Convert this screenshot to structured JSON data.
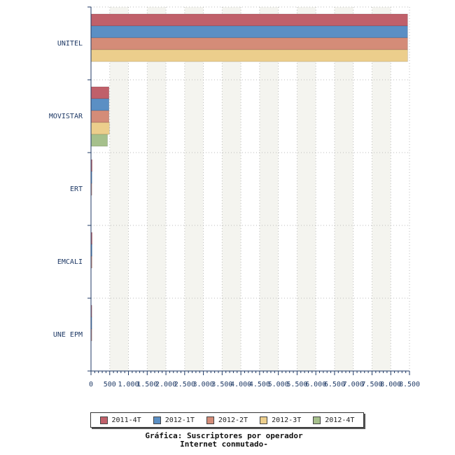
{
  "chart_data": {
    "type": "bar",
    "orientation": "horizontal",
    "categories": [
      "UNITEL",
      "MOVISTAR",
      "ERT",
      "EMCALI",
      "UNE EPM"
    ],
    "series": [
      {
        "name": "2011-4T",
        "color": "#c0606a",
        "values": [
          8450,
          480,
          30,
          30,
          15
        ]
      },
      {
        "name": "2012-1T",
        "color": "#5b8fc4",
        "values": [
          8450,
          480,
          25,
          28,
          12
        ]
      },
      {
        "name": "2012-2T",
        "color": "#d48c78",
        "values": [
          8450,
          480,
          22,
          26,
          10
        ]
      },
      {
        "name": "2012-3T",
        "color": "#ecce8c",
        "values": [
          8450,
          490,
          0,
          0,
          0
        ]
      },
      {
        "name": "2012-4T",
        "color": "#a6c08c",
        "values": [
          null,
          440,
          null,
          null,
          null
        ]
      }
    ],
    "xlim": [
      0,
      8500
    ],
    "xticks": [
      "0",
      "500",
      "1.000",
      "1.500",
      "2.000",
      "2.500",
      "3.000",
      "3.500",
      "4.000",
      "4.500",
      "5.000",
      "5.500",
      "6.000",
      "6.500",
      "7.000",
      "7.500",
      "8.000",
      "8.500"
    ],
    "grid": true,
    "legend_position": "bottom"
  },
  "caption": {
    "line1": "Gráfica: Suscriptores por operador",
    "line2": "Internet conmutado-"
  }
}
